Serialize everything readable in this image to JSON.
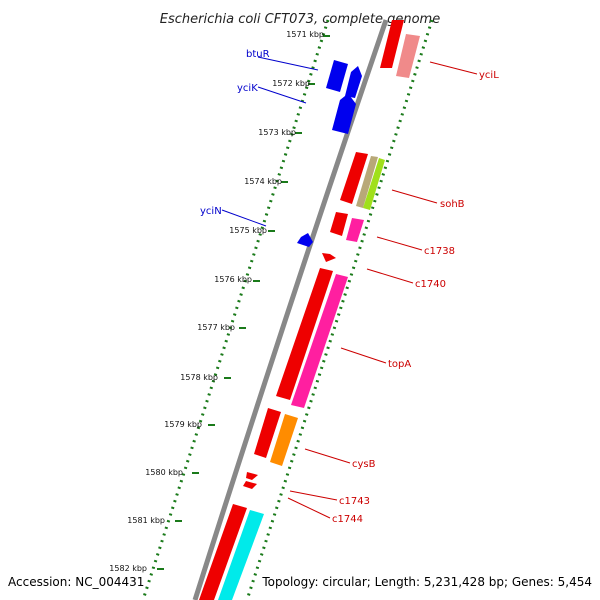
{
  "title": "Escherichia coli CFT073, complete genome",
  "footer": {
    "accession": "Accession: NC_004431",
    "summary": "Topology: circular; Length: 5,231,428 bp; Genes: 5,454"
  },
  "colors": {
    "backbone": "#888888",
    "dotted_track": "#1a7a1a",
    "tick": "#1a7a1a",
    "forward_label": "#0000cc",
    "reverse_label": "#cc0000"
  },
  "ticks": [
    "1571 kbp",
    "1572 kbp",
    "1573 kbp",
    "1574 kbp",
    "1575 kbp",
    "1576 kbp",
    "1577 kbp",
    "1578 kbp",
    "1579 kbp",
    "1580 kbp",
    "1581 kbp",
    "1582 kbp"
  ],
  "forward_genes": [
    {
      "label": "btuR",
      "color": "#0000ee"
    },
    {
      "label": "yciK",
      "color": "#0000ee"
    },
    {
      "label": "yciN",
      "color": "#0000ee"
    }
  ],
  "reverse_genes": [
    {
      "label": "yciL",
      "color": "#f08a8a"
    },
    {
      "label": "sohB",
      "color": "#ee0000"
    },
    {
      "label": "c1738",
      "color": "#ff1fa0"
    },
    {
      "label": "c1740",
      "color": "#ee0000"
    },
    {
      "label": "topA",
      "color": "#ff1fa0"
    },
    {
      "label": "cysB",
      "color": "#ff8c00"
    },
    {
      "label": "c1743",
      "color": "#ee0000"
    },
    {
      "label": "c1744",
      "color": "#ee0000"
    }
  ]
}
